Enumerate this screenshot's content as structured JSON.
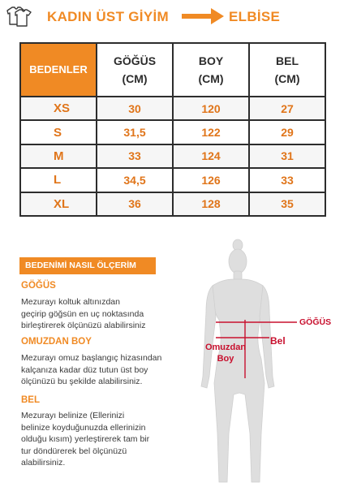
{
  "header": {
    "left_title": "KADIN ÜST GİYİM",
    "right_title": "ELBİSE",
    "accent_color": "#f08a24",
    "icon": "tshirt-icon"
  },
  "size_table": {
    "columns": [
      "BEDENLER",
      "GÖĞÜS\n(CM)",
      "BOY\n(CM)",
      "BEL\n(CM)"
    ],
    "rows": [
      {
        "size": "XS",
        "gogus": "30",
        "boy": "120",
        "bel": "27"
      },
      {
        "size": "S",
        "gogus": "31,5",
        "boy": "122",
        "bel": "29"
      },
      {
        "size": "M",
        "gogus": "33",
        "boy": "124",
        "bel": "31"
      },
      {
        "size": "L",
        "gogus": "34,5",
        "boy": "126",
        "bel": "33"
      },
      {
        "size": "XL",
        "gogus": "36",
        "boy": "128",
        "bel": "35"
      }
    ]
  },
  "howto": {
    "banner": "BEDENİMİ NASIL ÖLÇERİM",
    "sections": [
      {
        "title": "GÖĞÜS",
        "body": "Mezurayı koltuk altınızdan\ngeçirip göğsün en uç noktasında\nbirleştirerek ölçünüzü alabilirsiniz"
      },
      {
        "title": "OMUZDAN BOY",
        "body": "Mezurayı omuz başlangıç hizasından\nkalçanıza kadar düz tutun üst boy\nölçünüzü bu şekilde alabilirsiniz."
      },
      {
        "title": "BEL",
        "body": "Mezurayı belinize (Ellerinizi\nbelinize koyduğunuzda ellerinizin\nolduğu kısım) yerleştirerek tam bir\ntur döndürerek bel ölçünüzü\nalabilirsiniz."
      }
    ]
  },
  "figure_labels": {
    "gogus": "GÖĞÜS",
    "bel": "Bel",
    "omuzdan_boy": "Omuzdan\nBoy",
    "line_color": "#c8102e"
  }
}
